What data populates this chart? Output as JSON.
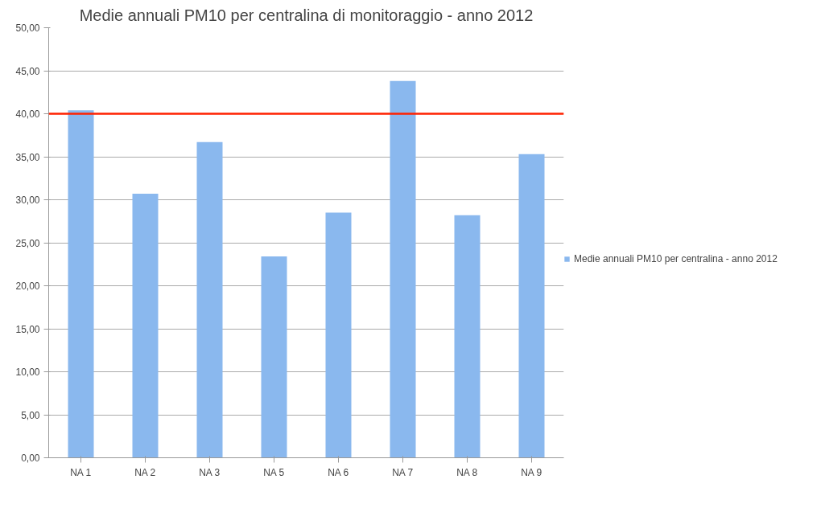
{
  "chart_data": {
    "type": "bar",
    "title": "Medie annuali PM10 per centralina di monitoraggio - anno 2012",
    "categories": [
      "NA 1",
      "NA 2",
      "NA 3",
      "NA 5",
      "NA 6",
      "NA 7",
      "NA 8",
      "NA 9"
    ],
    "series": [
      {
        "name": "Medie annuali PM10 per centralina - anno 2012",
        "color": "#8ab8ee",
        "values": [
          40.4,
          30.7,
          36.7,
          23.4,
          28.5,
          43.8,
          28.2,
          35.3
        ]
      }
    ],
    "ylim": [
      0,
      50
    ],
    "yticks": [
      {
        "value": 0,
        "label": "0,00"
      },
      {
        "value": 5,
        "label": "5,00"
      },
      {
        "value": 10,
        "label": "10,00"
      },
      {
        "value": 15,
        "label": "15,00"
      },
      {
        "value": 20,
        "label": "20,00"
      },
      {
        "value": 25,
        "label": "25,00"
      },
      {
        "value": 30,
        "label": "30,00"
      },
      {
        "value": 35,
        "label": "35,00"
      },
      {
        "value": 40,
        "label": "40,00"
      },
      {
        "value": 45,
        "label": "45,00"
      },
      {
        "value": 50,
        "label": "50,00"
      }
    ],
    "ref_lines": [
      {
        "axis": "y",
        "value": 40,
        "color": "#ff2200"
      }
    ],
    "grid": "y",
    "legend": "right"
  }
}
